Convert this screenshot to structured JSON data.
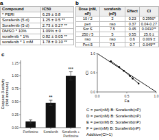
{
  "chart_data": [
    {
      "type": "table",
      "title": "a",
      "columns": [
        "Compound",
        "IC50"
      ],
      "rows": [
        [
          "* PERI",
          "6.29 ± 0.8"
        ],
        [
          "Sorafenib (5 d)",
          "1.25 ± 0.5 **"
        ],
        [
          "Sorafenib (5 d)",
          "2.73 ± 0.27 **"
        ],
        [
          "DMSO * 10%",
          "1.09% ± 0"
        ],
        [
          "sorafenib * 1%",
          "0.82 ± 0.05 **"
        ],
        [
          "sorafenib * 1 mM",
          "1.78 ± 0.10 **"
        ]
      ]
    },
    {
      "type": "table",
      "title": "b",
      "columns": [
        "Dose (nM, nP)",
        "sorafenib (nP)",
        "Effect",
        "CI"
      ],
      "rows": [
        [
          "10 / 2",
          "2",
          "0.23",
          "0.2990*"
        ],
        [
          "peri",
          "nso",
          "0.37",
          "0.04-0.27"
        ],
        [
          "Sor S",
          "7.5",
          "0.45",
          "0.0410**"
        ],
        [
          "250 / 5",
          "5",
          "0.55",
          "25.6 ±"
        ],
        [
          "nso",
          "nso",
          "0.6",
          "0.009 ±"
        ],
        [
          "Peri.5",
          "7.5",
          "0.7",
          "0.049**"
        ]
      ]
    },
    {
      "type": "line",
      "xlabel": "Fa",
      "ylabel": "CI",
      "xlim": [
        0,
        1
      ],
      "ylim": [
        0,
        1
      ],
      "xticks": [
        {
          "value": 0,
          "label": "0.0"
        },
        0.5,
        {
          "value": 1.0,
          "label": "1.0"
        }
      ],
      "yticks": [
        {
          "value": 0,
          "label": "0.0"
        },
        0.5,
        {
          "value": 1.0,
          "label": "1.0"
        }
      ],
      "series": [
        {
          "x": [
            0,
            1
          ],
          "values": [
            1,
            0
          ],
          "color": "#000000",
          "line_style": "solid"
        },
        {
          "x": [
            0.23,
            0.37,
            0.45,
            0.55,
            0.6,
            0.7
          ],
          "values": [
            0.8,
            0.65,
            0.55,
            0.42,
            0.35,
            0.22
          ],
          "color": "#000000",
          "line_style": "solid",
          "marker": "dot"
        }
      ],
      "annotations": [
        "C = peri(nM) B: Sorafenib(nP)",
        "D = peri(nM) B: Sorafenib(nP)",
        "E = peri(nM) B: Sorafenib(nP)",
        "F = peri(nM) B: Sorafenib(nP)",
        "Additive(CI=1)"
      ]
    },
    {
      "type": "bar",
      "title": "c",
      "ylabel": "Caspase 3 activity\n(fold increase)",
      "categories": [
        "Perifosine",
        "Sorafenib",
        "Sorafenib +\nPerifosine"
      ],
      "values": [
        0.12,
        0.48,
        1.0
      ],
      "errors": [
        0.03,
        0.05,
        0.08
      ],
      "significance": [
        null,
        "**",
        "***"
      ],
      "color": "#111111",
      "ylim": [
        0,
        1.3
      ],
      "yticks": [
        {
          "value": 0,
          "label": "0.00"
        },
        0.25,
        {
          "value": 0.5,
          "label": "0.50"
        },
        0.75,
        {
          "value": 1.0,
          "label": "1.00"
        },
        1.25
      ]
    }
  ]
}
